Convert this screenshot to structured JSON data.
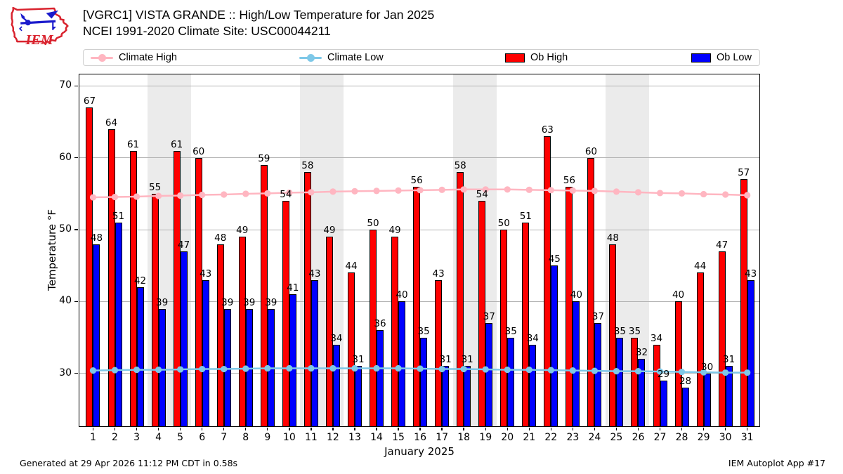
{
  "header": {
    "title_line1": "[VGRC1] VISTA GRANDE :: High/Low Temperature for Jan 2025",
    "title_line2": "NCEI 1991-2020 Climate Site: USC00044211",
    "logo_text": "IEM"
  },
  "legend": [
    {
      "label": "Climate High",
      "type": "line",
      "color": "#ffb6c1"
    },
    {
      "label": "Climate Low",
      "type": "line",
      "color": "#7ec8e8"
    },
    {
      "label": "Ob High",
      "type": "patch",
      "color": "#ff0000"
    },
    {
      "label": "Ob Low",
      "type": "patch",
      "color": "#0000ff"
    }
  ],
  "footer": {
    "left": "Generated at 29 Apr 2026 11:12 PM CDT in 0.58s",
    "right": "IEM Autoplot App #17"
  },
  "chart_data": {
    "type": "bar",
    "title": "[VGRC1] VISTA GRANDE :: High/Low Temperature for Jan 2025",
    "subtitle": "NCEI 1991-2020 Climate Site: USC00044211",
    "xlabel": "January 2025",
    "ylabel": "Temperature °F",
    "x": [
      1,
      2,
      3,
      4,
      5,
      6,
      7,
      8,
      9,
      10,
      11,
      12,
      13,
      14,
      15,
      16,
      17,
      18,
      19,
      20,
      21,
      22,
      23,
      24,
      25,
      26,
      27,
      28,
      29,
      30,
      31
    ],
    "series": [
      {
        "name": "Ob High",
        "type": "bar",
        "color": "#ff0000",
        "values": [
          67,
          64,
          61,
          55,
          61,
          60,
          48,
          49,
          59,
          54,
          58,
          49,
          44,
          50,
          49,
          56,
          43,
          58,
          54,
          50,
          51,
          63,
          56,
          60,
          48,
          35,
          34,
          40,
          44,
          47,
          57
        ]
      },
      {
        "name": "Ob Low",
        "type": "bar",
        "color": "#0000ff",
        "values": [
          48,
          51,
          42,
          39,
          47,
          43,
          39,
          39,
          39,
          41,
          43,
          34,
          31,
          36,
          40,
          35,
          31,
          31,
          37,
          35,
          34,
          45,
          40,
          37,
          35,
          32,
          29,
          28,
          30,
          31,
          43
        ]
      },
      {
        "name": "Climate High",
        "type": "line",
        "color": "#ffb6c1",
        "values": [
          54.5,
          54.55,
          54.6,
          54.7,
          54.75,
          54.85,
          54.9,
          55.0,
          55.05,
          55.15,
          55.2,
          55.3,
          55.35,
          55.4,
          55.45,
          55.5,
          55.55,
          55.6,
          55.6,
          55.6,
          55.55,
          55.5,
          55.45,
          55.4,
          55.3,
          55.2,
          55.1,
          55.05,
          54.95,
          54.9,
          54.8
        ]
      },
      {
        "name": "Climate Low",
        "type": "line",
        "color": "#7ec8e8",
        "values": [
          30.4,
          30.45,
          30.5,
          30.5,
          30.55,
          30.6,
          30.6,
          30.65,
          30.7,
          30.7,
          30.7,
          30.7,
          30.7,
          30.7,
          30.7,
          30.65,
          30.6,
          30.6,
          30.55,
          30.5,
          30.5,
          30.45,
          30.4,
          30.35,
          30.3,
          30.3,
          30.25,
          30.2,
          30.15,
          30.1,
          30.1
        ]
      }
    ],
    "yticks": [
      30,
      40,
      50,
      60,
      70
    ],
    "ylim": [
      22.54,
      71.71
    ],
    "weekend_bands": [
      [
        4,
        5
      ],
      [
        11,
        12
      ],
      [
        18,
        19
      ],
      [
        25,
        26
      ]
    ],
    "grid": true,
    "legend_position": "top",
    "band_color": "#ebebeb",
    "grid_color": "#b3b3b3"
  }
}
